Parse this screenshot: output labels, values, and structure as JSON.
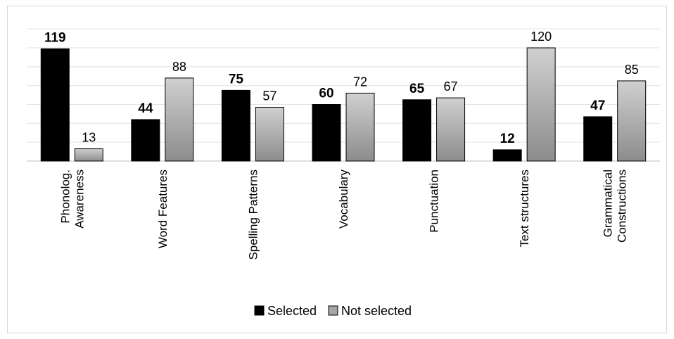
{
  "chart_data": {
    "type": "bar",
    "title": "",
    "xlabel": "",
    "ylabel": "",
    "ylim": [
      0,
      120
    ],
    "grid": true,
    "legend_position": "bottom",
    "categories": [
      [
        "Phonolog.",
        "Awareness"
      ],
      [
        "Word Features"
      ],
      [
        "Spelling Patterns"
      ],
      [
        "Vocabulary"
      ],
      [
        "Punctuation"
      ],
      [
        "Text structures"
      ],
      [
        "Grammatical",
        "Constructions"
      ]
    ],
    "series": [
      {
        "name": "Selected",
        "values": [
          119,
          44,
          75,
          60,
          65,
          12,
          47
        ],
        "color": "#000000"
      },
      {
        "name": "Not selected",
        "values": [
          13,
          88,
          57,
          72,
          67,
          120,
          85
        ],
        "color": "#a6a6a6"
      }
    ]
  }
}
